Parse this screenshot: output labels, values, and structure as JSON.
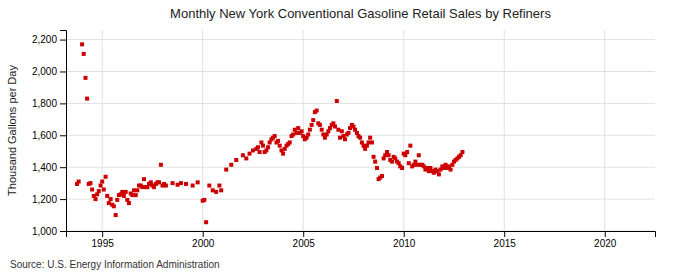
{
  "chart_data": {
    "type": "scatter",
    "title": "Monthly New York Conventional Gasoline Retail Sales by Refiners",
    "y_label": "Thousand Gallons per Day",
    "annotations": [
      "Source: U.S. Energy Information Administration"
    ],
    "color": "#cc0000",
    "marker": "square",
    "grid": true,
    "xlim": [
      1993.2,
      2022.5
    ],
    "ylim": [
      1000,
      2260
    ],
    "xticks": [
      1995,
      2000,
      2005,
      2010,
      2015,
      2020
    ],
    "yticks": [
      {
        "value": 1000,
        "label": "1,000"
      },
      {
        "value": 1200,
        "label": "1,200"
      },
      {
        "value": 1400,
        "label": "1,400"
      },
      {
        "value": 1600,
        "label": "1,600"
      },
      {
        "value": 1800,
        "label": "1,800"
      },
      {
        "value": 2000,
        "label": "2,000"
      },
      {
        "value": 2200,
        "label": "2,200"
      }
    ],
    "x": [
      1993.75,
      1993.83,
      1994.0,
      1994.08,
      1994.17,
      1994.25,
      1994.33,
      1994.42,
      1994.5,
      1994.58,
      1994.67,
      1994.75,
      1994.83,
      1994.92,
      1995.0,
      1995.08,
      1995.17,
      1995.25,
      1995.33,
      1995.42,
      1995.5,
      1995.58,
      1995.67,
      1995.75,
      1995.83,
      1995.92,
      1996.0,
      1996.08,
      1996.17,
      1996.25,
      1996.33,
      1996.42,
      1996.5,
      1996.58,
      1996.67,
      1996.75,
      1996.83,
      1996.92,
      1997.0,
      1997.08,
      1997.17,
      1997.25,
      1997.33,
      1997.42,
      1997.5,
      1997.58,
      1997.67,
      1997.75,
      1997.83,
      1997.92,
      1998.0,
      1998.08,
      1998.17,
      1998.5,
      1998.75,
      1998.92,
      1999.17,
      1999.5,
      1999.75,
      2000.0,
      2000.08,
      2000.17,
      2000.33,
      2000.5,
      2000.67,
      2000.83,
      2000.92,
      2001.17,
      2001.42,
      2001.67,
      2002.0,
      2002.17,
      2002.33,
      2002.5,
      2002.67,
      2002.75,
      2002.83,
      2002.92,
      2003.0,
      2003.08,
      2003.17,
      2003.25,
      2003.33,
      2003.42,
      2003.5,
      2003.58,
      2003.67,
      2003.75,
      2003.83,
      2003.92,
      2004.0,
      2004.08,
      2004.17,
      2004.25,
      2004.33,
      2004.42,
      2004.5,
      2004.58,
      2004.67,
      2004.75,
      2004.83,
      2004.92,
      2005.0,
      2005.08,
      2005.17,
      2005.25,
      2005.33,
      2005.42,
      2005.5,
      2005.58,
      2005.67,
      2005.75,
      2005.83,
      2005.92,
      2006.0,
      2006.08,
      2006.17,
      2006.25,
      2006.33,
      2006.42,
      2006.5,
      2006.58,
      2006.67,
      2006.75,
      2006.83,
      2006.92,
      2007.0,
      2007.08,
      2007.17,
      2007.25,
      2007.33,
      2007.42,
      2007.5,
      2007.58,
      2007.67,
      2007.75,
      2007.83,
      2007.92,
      2008.0,
      2008.08,
      2008.17,
      2008.25,
      2008.33,
      2008.42,
      2008.5,
      2008.58,
      2008.67,
      2008.75,
      2008.83,
      2008.92,
      2009.0,
      2009.08,
      2009.17,
      2009.25,
      2009.33,
      2009.42,
      2009.5,
      2009.58,
      2009.67,
      2009.75,
      2009.83,
      2009.92,
      2010.0,
      2010.08,
      2010.17,
      2010.25,
      2010.33,
      2010.42,
      2010.5,
      2010.58,
      2010.67,
      2010.75,
      2010.83,
      2010.92,
      2011.0,
      2011.08,
      2011.17,
      2011.25,
      2011.33,
      2011.42,
      2011.5,
      2011.58,
      2011.67,
      2011.75,
      2011.83,
      2011.92,
      2012.0,
      2012.08,
      2012.17,
      2012.25,
      2012.33,
      2012.42,
      2012.5,
      2012.58,
      2012.67,
      2012.75,
      2012.83,
      2012.92
    ],
    "values": [
      1295,
      1310,
      2170,
      2110,
      1960,
      1830,
      1295,
      1300,
      1260,
      1220,
      1200,
      1230,
      1250,
      1285,
      1310,
      1260,
      1340,
      1220,
      1175,
      1200,
      1165,
      1155,
      1100,
      1195,
      1225,
      1230,
      1245,
      1220,
      1245,
      1195,
      1175,
      1235,
      1225,
      1255,
      1225,
      1255,
      1285,
      1285,
      1275,
      1325,
      1275,
      1275,
      1295,
      1305,
      1285,
      1275,
      1295,
      1305,
      1305,
      1415,
      1285,
      1295,
      1285,
      1300,
      1290,
      1300,
      1295,
      1285,
      1305,
      1190,
      1195,
      1055,
      1285,
      1255,
      1245,
      1285,
      1255,
      1385,
      1415,
      1445,
      1475,
      1455,
      1485,
      1505,
      1515,
      1525,
      1495,
      1555,
      1535,
      1495,
      1505,
      1525,
      1555,
      1575,
      1585,
      1595,
      1555,
      1565,
      1535,
      1505,
      1485,
      1515,
      1535,
      1545,
      1555,
      1595,
      1605,
      1635,
      1615,
      1645,
      1615,
      1625,
      1595,
      1575,
      1585,
      1605,
      1635,
      1665,
      1695,
      1745,
      1755,
      1675,
      1665,
      1635,
      1605,
      1585,
      1605,
      1625,
      1645,
      1665,
      1675,
      1655,
      1815,
      1635,
      1585,
      1625,
      1595,
      1575,
      1605,
      1615,
      1645,
      1665,
      1655,
      1635,
      1615,
      1595,
      1585,
      1555,
      1535,
      1515,
      1535,
      1555,
      1585,
      1555,
      1465,
      1435,
      1395,
      1325,
      1335,
      1345,
      1455,
      1475,
      1495,
      1475,
      1445,
      1435,
      1465,
      1455,
      1435,
      1425,
      1405,
      1395,
      1485,
      1475,
      1495,
      1425,
      1535,
      1405,
      1415,
      1435,
      1415,
      1475,
      1415,
      1415,
      1405,
      1385,
      1395,
      1375,
      1395,
      1375,
      1365,
      1385,
      1375,
      1355,
      1385,
      1405,
      1395,
      1415,
      1395,
      1405,
      1385,
      1415,
      1435,
      1445,
      1455,
      1465,
      1475,
      1495
    ]
  }
}
